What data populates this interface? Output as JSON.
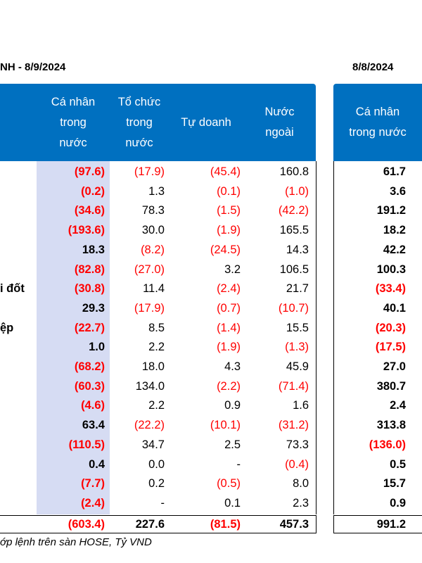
{
  "title_left": "NH - 8/9/2024",
  "title_right": "8/8/2024",
  "columns": [
    {
      "lines": [
        "Cá nhân",
        "trong",
        "nước"
      ]
    },
    {
      "lines": [
        "Tổ chức",
        "trong",
        "nước"
      ]
    },
    {
      "lines": [
        "Tự doanh"
      ]
    },
    {
      "lines": [
        "Nước",
        "ngoài"
      ]
    }
  ],
  "columns_right": [
    {
      "lines": [
        "Cá nhân",
        "trong nước"
      ]
    }
  ],
  "row_labels": [
    "",
    "",
    "",
    "",
    "",
    "",
    "i đốt",
    "",
    "ệp",
    "",
    "",
    "",
    "",
    "",
    "",
    "",
    "",
    ""
  ],
  "chart_data": {
    "type": "table",
    "rows": [
      [
        "(97.6)",
        "(17.9)",
        "(45.4)",
        "160.8",
        "61.7"
      ],
      [
        "(0.2)",
        "1.3",
        "(0.1)",
        "(1.0)",
        "3.6"
      ],
      [
        "(34.6)",
        "78.3",
        "(1.5)",
        "(42.2)",
        "191.2"
      ],
      [
        "(193.6)",
        "30.0",
        "(1.9)",
        "165.5",
        "18.2"
      ],
      [
        "18.3",
        "(8.2)",
        "(24.5)",
        "14.3",
        "42.2"
      ],
      [
        "(82.8)",
        "(27.0)",
        "3.2",
        "106.5",
        "100.3"
      ],
      [
        "(30.8)",
        "11.4",
        "(2.4)",
        "21.7",
        "(33.4)"
      ],
      [
        "29.3",
        "(17.9)",
        "(0.7)",
        "(10.7)",
        "40.1"
      ],
      [
        "(22.7)",
        "8.5",
        "(1.4)",
        "15.5",
        "(20.3)"
      ],
      [
        "1.0",
        "2.2",
        "(1.9)",
        "(1.3)",
        "(17.5)"
      ],
      [
        "(68.2)",
        "18.0",
        "4.3",
        "45.9",
        "27.0"
      ],
      [
        "(60.3)",
        "134.0",
        "(2.2)",
        "(71.4)",
        "380.7"
      ],
      [
        "(4.6)",
        "2.2",
        "0.9",
        "1.6",
        "2.4"
      ],
      [
        "63.4",
        "(22.2)",
        "(10.1)",
        "(31.2)",
        "313.8"
      ],
      [
        "(110.5)",
        "34.7",
        "2.5",
        "73.3",
        "(136.0)"
      ],
      [
        "0.4",
        "0.0",
        "-",
        "(0.4)",
        "0.5"
      ],
      [
        "(7.7)",
        "0.2",
        "(0.5)",
        "8.0",
        "15.7"
      ],
      [
        "(2.4)",
        "-",
        "0.1",
        "2.3",
        "0.9"
      ]
    ],
    "totals": [
      "(603.4)",
      "227.6",
      "(81.5)",
      "457.3",
      "991.2"
    ]
  },
  "footnote": "ớp lệnh trên sàn HOSE, Tỷ VND",
  "colors": {
    "header_bg": "#0070c0",
    "shade": "#d6dcf3",
    "negative": "#ff0000"
  }
}
